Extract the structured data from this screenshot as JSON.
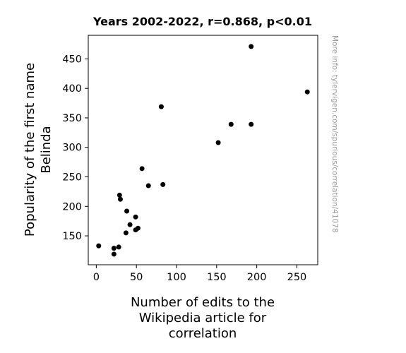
{
  "chart_data": {
    "type": "scatter",
    "title": "Years 2002-2022, r=0.868, p<0.01",
    "xlabel": [
      "Number of edits to the",
      "Wikipedia article for",
      "correlation"
    ],
    "ylabel": [
      "Popularity of the first name",
      "Belinda"
    ],
    "side_note": "More info: tylervigen.com/spurious/correlation/41078",
    "xlim": [
      -10,
      276
    ],
    "ylim": [
      101,
      490
    ],
    "xticks": [
      0,
      50,
      100,
      150,
      200,
      250
    ],
    "yticks": [
      150,
      200,
      250,
      300,
      350,
      400,
      450
    ],
    "grid": false,
    "marker_color": "#000000",
    "points": [
      {
        "x": 3,
        "y": 133
      },
      {
        "x": 22,
        "y": 129
      },
      {
        "x": 22,
        "y": 119
      },
      {
        "x": 28,
        "y": 131
      },
      {
        "x": 29,
        "y": 219
      },
      {
        "x": 30,
        "y": 212
      },
      {
        "x": 37,
        "y": 155
      },
      {
        "x": 38,
        "y": 192
      },
      {
        "x": 42,
        "y": 169
      },
      {
        "x": 49,
        "y": 182
      },
      {
        "x": 49,
        "y": 160
      },
      {
        "x": 52,
        "y": 163
      },
      {
        "x": 57,
        "y": 264
      },
      {
        "x": 65,
        "y": 235
      },
      {
        "x": 81,
        "y": 369
      },
      {
        "x": 83,
        "y": 237
      },
      {
        "x": 152,
        "y": 308
      },
      {
        "x": 168,
        "y": 339
      },
      {
        "x": 193,
        "y": 339
      },
      {
        "x": 193,
        "y": 471
      },
      {
        "x": 263,
        "y": 394
      }
    ]
  }
}
